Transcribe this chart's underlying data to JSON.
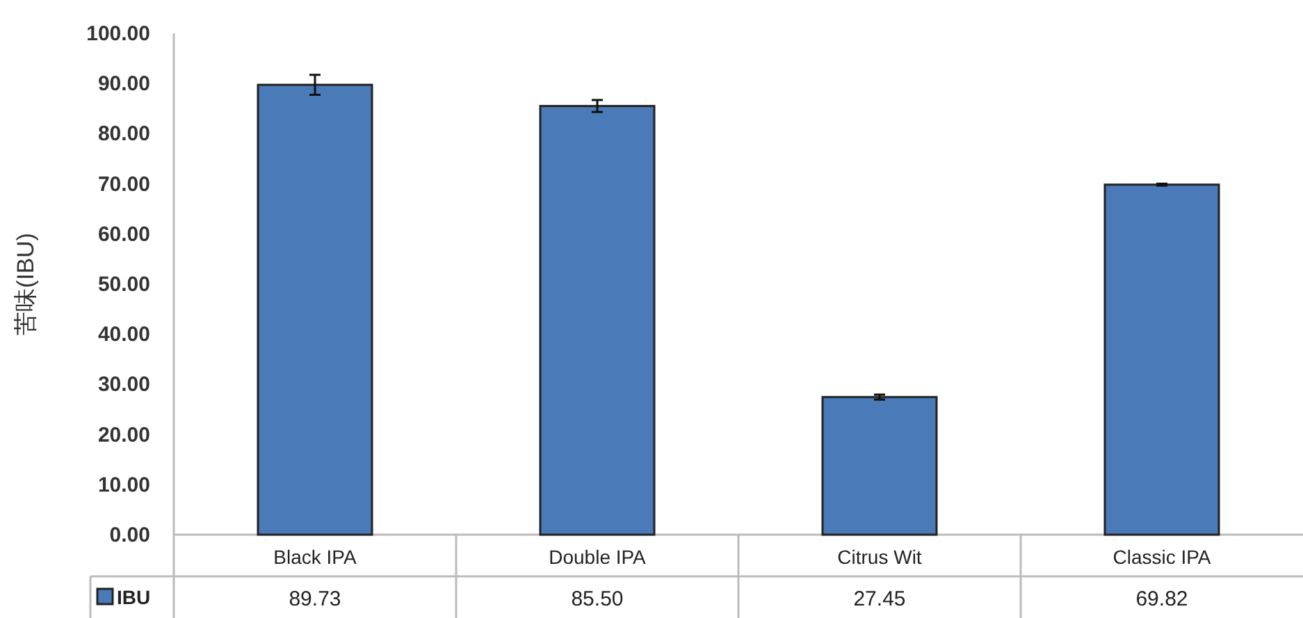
{
  "chart_data": {
    "type": "bar",
    "ylabel": "苦味(IBU)",
    "categories": [
      "Black IPA",
      "Double IPA",
      "Citrus Wit",
      "Classic IPA"
    ],
    "series": [
      {
        "name": "IBU",
        "color": "#4a7ab8",
        "values": [
          89.73,
          85.5,
          27.45,
          69.82
        ],
        "errors": [
          2,
          1.2,
          0.5,
          0.2
        ],
        "value_labels": [
          "89.73",
          "85.50",
          "27.45",
          "69.82"
        ]
      }
    ],
    "ylim": [
      0,
      100
    ],
    "yticks": [
      {
        "value": 0,
        "label": "0.00"
      },
      {
        "value": 10,
        "label": "10.00"
      },
      {
        "value": 20,
        "label": "20.00"
      },
      {
        "value": 30,
        "label": "30.00"
      },
      {
        "value": 40,
        "label": "40.00"
      },
      {
        "value": 50,
        "label": "50.00"
      },
      {
        "value": 60,
        "label": "60.00"
      },
      {
        "value": 70,
        "label": "70.00"
      },
      {
        "value": 80,
        "label": "80.00"
      },
      {
        "value": 90,
        "label": "90.00"
      },
      {
        "value": 100,
        "label": "100.00"
      }
    ],
    "grid": false,
    "legend": "bottom left"
  }
}
